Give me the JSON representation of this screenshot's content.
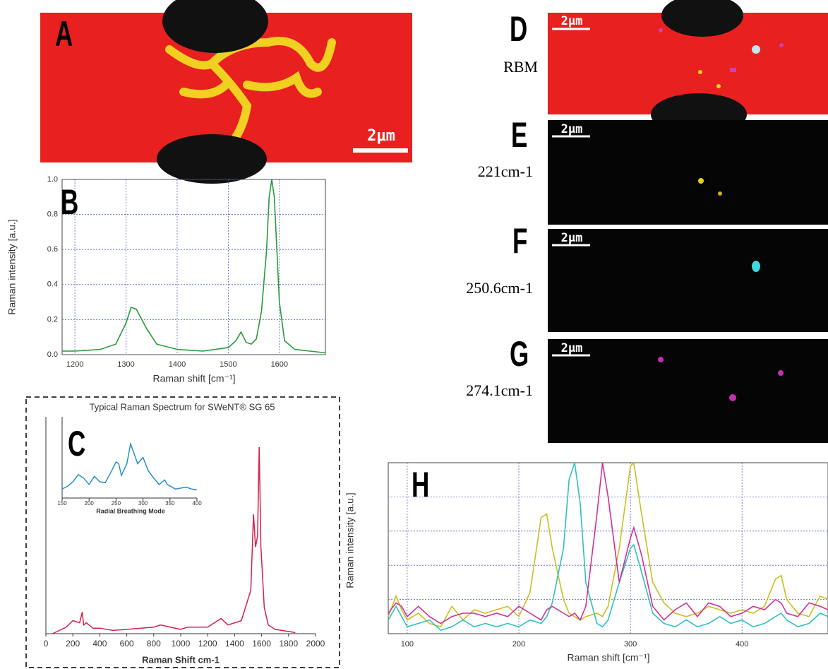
{
  "images": [
    {
      "panel_label": "A",
      "scale_bar": "2μm"
    },
    {
      "panel_label": "D",
      "caption": "RBM",
      "scale_bar": "2μm"
    },
    {
      "panel_label": "E",
      "caption": "221cm-1",
      "scale_bar": "2μm"
    },
    {
      "panel_label": "F",
      "caption": "250.6cm-1",
      "scale_bar": "2μm"
    },
    {
      "panel_label": "G",
      "caption": "274.1cm-1",
      "scale_bar": "2μm"
    }
  ],
  "chart_data": [
    {
      "type": "line",
      "panel_label": "B",
      "xlabel": "Raman shift [cm⁻¹]",
      "ylabel": "Raman intensity [a.u.]",
      "x": [
        1175,
        1200,
        1250,
        1280,
        1300,
        1310,
        1320,
        1340,
        1360,
        1400,
        1450,
        1500,
        1515,
        1525,
        1535,
        1545,
        1555,
        1565,
        1575,
        1580,
        1585,
        1590,
        1595,
        1600,
        1610,
        1630,
        1660,
        1690
      ],
      "values": [
        0.02,
        0.02,
        0.03,
        0.06,
        0.18,
        0.27,
        0.26,
        0.15,
        0.06,
        0.03,
        0.02,
        0.04,
        0.08,
        0.13,
        0.07,
        0.06,
        0.09,
        0.25,
        0.6,
        0.9,
        1.0,
        0.9,
        0.6,
        0.3,
        0.08,
        0.03,
        0.02,
        0.01
      ],
      "color": "#2a9a3a",
      "xlim": [
        1175,
        1690
      ],
      "ylim": [
        0,
        1
      ],
      "xticks": [
        1200,
        1300,
        1400,
        1500,
        1600
      ],
      "yticks": [
        {
          "value": 0,
          "label": "0.0"
        },
        0.2,
        0.4,
        0.6,
        0.8,
        {
          "value": 1,
          "label": "1.0"
        }
      ],
      "grid": true
    },
    {
      "type": "line",
      "panel_label": "C",
      "title": "Typical Raman Spectrum for SWeNT® SG 65",
      "xlabel": "Raman Shift cm-1",
      "x": [
        50,
        150,
        200,
        250,
        270,
        280,
        300,
        350,
        400,
        500,
        600,
        800,
        850,
        1000,
        1050,
        1200,
        1300,
        1350,
        1450,
        1520,
        1540,
        1555,
        1570,
        1582,
        1595,
        1620,
        1650,
        1700,
        1800,
        1850
      ],
      "values": [
        0,
        3,
        6,
        5,
        10,
        4,
        5,
        2.5,
        2.5,
        1.5,
        2,
        3,
        4,
        2,
        3,
        3,
        7,
        4,
        6,
        20,
        55,
        40,
        45,
        86,
        40,
        12,
        4,
        2,
        1,
        0.5
      ],
      "color": "#d4204a",
      "xlim": [
        0,
        2000
      ],
      "ylim": [
        0,
        100
      ],
      "xticks": [
        0,
        200,
        400,
        600,
        800,
        1000,
        1200,
        1400,
        1600,
        1800,
        2000
      ],
      "grid": false
    },
    {
      "type": "line",
      "xlabel": "Radial Breathing Mode",
      "x": [
        150,
        160,
        170,
        180,
        190,
        200,
        210,
        220,
        230,
        240,
        250,
        255,
        260,
        270,
        277,
        280,
        290,
        300,
        310,
        320,
        330,
        340,
        345,
        360,
        380,
        390,
        400
      ],
      "values": [
        10,
        13,
        18,
        26,
        22,
        15,
        24,
        18,
        17,
        28,
        40,
        38,
        25,
        38,
        60,
        55,
        38,
        45,
        30,
        22,
        15,
        20,
        15,
        10,
        12,
        10,
        9
      ],
      "color": "#2a8fc8",
      "xlim": [
        150,
        400
      ],
      "ylim": [
        0,
        90
      ],
      "xticks": [
        150,
        200,
        250,
        300,
        350,
        400
      ],
      "grid": false
    },
    {
      "type": "line",
      "panel_label": "H",
      "xlabel": "Raman shift [cm⁻¹]",
      "ylabel": "Raman intensity [a.u.]",
      "x": [
        83,
        90,
        95,
        100,
        110,
        120,
        130,
        140,
        150,
        160,
        170,
        180,
        190,
        200,
        210,
        220,
        225,
        230,
        240,
        245,
        250,
        255,
        260,
        270,
        275,
        280,
        290,
        300,
        303,
        310,
        320,
        330,
        340,
        350,
        360,
        370,
        380,
        390,
        400,
        410,
        420,
        430,
        435,
        440,
        450,
        460,
        470,
        477
      ],
      "series": [
        {
          "color": "#c8c020",
          "values": [
            0.5,
            1.1,
            0.7,
            0.4,
            0.6,
            0.3,
            0.2,
            0.8,
            0.4,
            0.7,
            0.6,
            0.7,
            0.8,
            0.5,
            1.2,
            3.4,
            3.5,
            2.5,
            1.0,
            0.6,
            0.5,
            0.4,
            0.5,
            0.6,
            0.5,
            0.8,
            2.5,
            4.9,
            5.0,
            3.5,
            1.5,
            0.9,
            0.6,
            0.5,
            0.6,
            0.8,
            0.7,
            0.6,
            0.7,
            0.6,
            0.8,
            1.6,
            1.7,
            1.0,
            0.6,
            0.5,
            1.1,
            1.0
          ]
        },
        {
          "color": "#30c0c0",
          "values": [
            0.4,
            0.8,
            0.5,
            0.2,
            0.3,
            0.4,
            0.1,
            0.2,
            0.4,
            0.2,
            0.3,
            0.2,
            0.3,
            0.2,
            0.4,
            0.3,
            0.5,
            0.9,
            2.5,
            4.5,
            5.0,
            3.8,
            1.5,
            0.3,
            0.2,
            0.4,
            1.5,
            2.5,
            2.6,
            1.8,
            0.6,
            0.3,
            0.2,
            0.4,
            0.2,
            0.3,
            0.5,
            0.3,
            0.4,
            0.2,
            0.3,
            0.5,
            0.6,
            0.4,
            0.2,
            0.3,
            0.6,
            0.5
          ]
        },
        {
          "color": "#d0309a",
          "values": [
            0.6,
            0.9,
            0.8,
            0.5,
            0.8,
            0.5,
            0.3,
            0.5,
            0.6,
            0.6,
            0.5,
            0.6,
            0.5,
            0.8,
            0.6,
            0.4,
            0.7,
            0.8,
            0.6,
            0.5,
            0.6,
            0.4,
            0.8,
            3.5,
            5.0,
            4.0,
            1.5,
            2.8,
            3.1,
            2.3,
            0.8,
            0.4,
            0.7,
            0.9,
            0.5,
            0.9,
            0.8,
            0.5,
            0.6,
            0.8,
            0.7,
            1.0,
            0.9,
            0.6,
            0.5,
            0.9,
            0.8,
            0.7
          ]
        }
      ],
      "xlim": [
        83,
        477
      ],
      "ylim": [
        0,
        5
      ],
      "xticks": [
        100,
        200,
        300,
        400
      ],
      "yticks": [
        1,
        2,
        3,
        4
      ],
      "grid": true
    }
  ]
}
